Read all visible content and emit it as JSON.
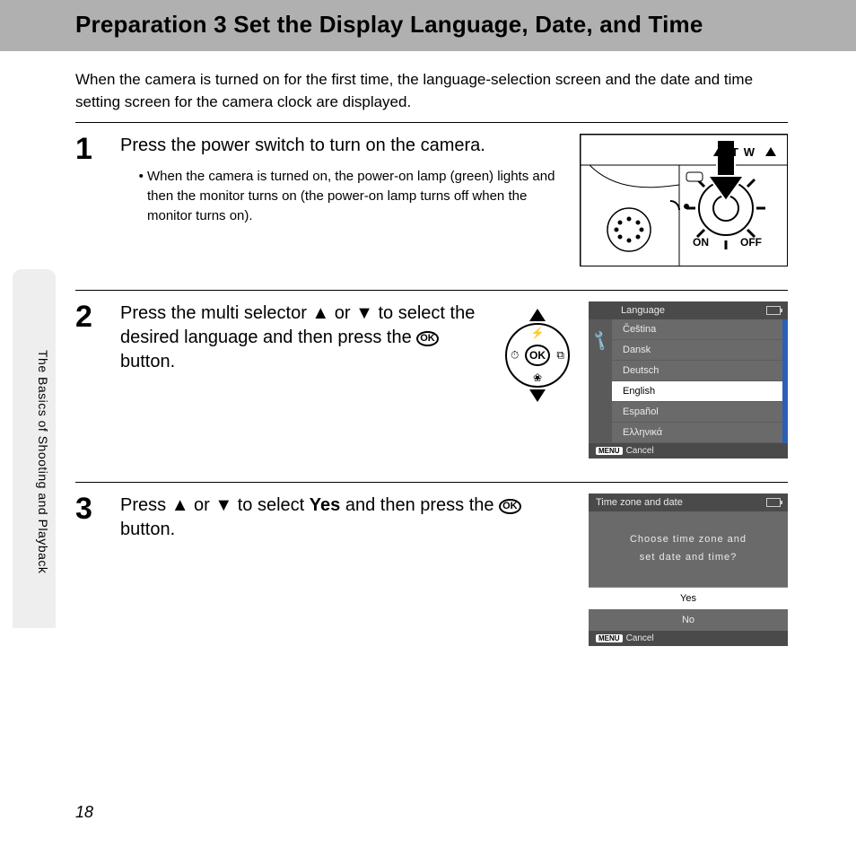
{
  "title": "Preparation 3 Set the Display Language, Date, and Time",
  "intro": "When the camera is turned on for the first time, the language-selection screen and the date and time setting screen for the camera clock are displayed.",
  "side_tab": "The Basics of Shooting and Playback",
  "page_number": "18",
  "steps": {
    "s1": {
      "num": "1",
      "title": "Press the power switch to turn on the camera.",
      "bullet": "When the camera is turned on, the power-on lamp (green) lights and then the monitor turns on (the power-on lamp turns off when the monitor turns on)."
    },
    "s2": {
      "num": "2",
      "title_pre": "Press the multi selector ",
      "title_mid": " or ",
      "title_post": " to select the desired language and then press the ",
      "title_end": " button.",
      "ok": "OK",
      "selector_ok": "OK"
    },
    "s3": {
      "num": "3",
      "title_pre": "Press ",
      "title_mid": " or ",
      "title_post": " to select ",
      "yes": "Yes",
      "title_post2": " and then press the ",
      "title_end": " button.",
      "ok": "OK"
    }
  },
  "lcd_lang": {
    "header": "Language",
    "items": [
      "Čeština",
      "Dansk",
      "Deutsch",
      "English",
      "Español",
      "Ελληνικά"
    ],
    "selected_index": 3,
    "cancel_label": "Cancel",
    "menu_btn": "MENU",
    "wrench": "🔧"
  },
  "lcd_tz": {
    "header": "Time zone and date",
    "msg1": "Choose time zone and",
    "msg2": "set date and time?",
    "opt_yes": "Yes",
    "opt_no": "No",
    "cancel_label": "Cancel",
    "menu_btn": "MENU"
  },
  "cam_labels": {
    "on": "ON",
    "off": "OFF",
    "t": "T",
    "w": "W"
  },
  "colors": {
    "title_bg": "#b0b0b0",
    "lcd_dark": "#4a4a4a",
    "lcd_mid": "#6a6a6a",
    "lcd_side": "#5a5a5a",
    "scroll": "#2b5fb6"
  }
}
